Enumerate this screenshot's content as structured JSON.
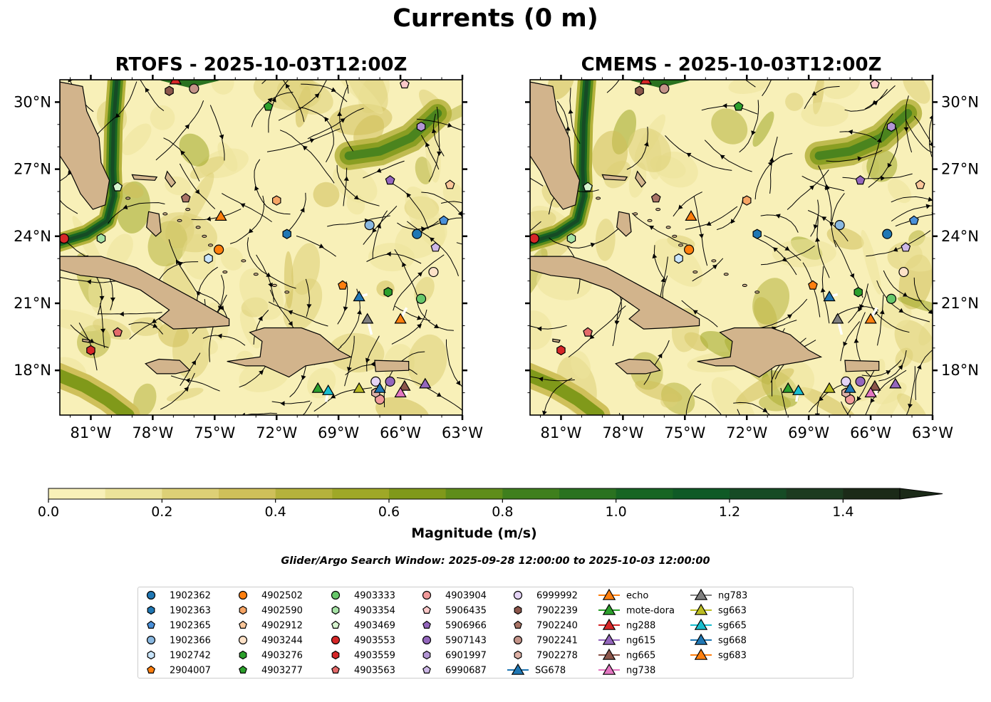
{
  "figure": {
    "title": "Currents (0 m)",
    "colorbar_label": "Magnitude (m/s)",
    "search_window": "Glider/Argo Search Window: 2025-09-28 12:00:00 to 2025-10-03 12:00:00"
  },
  "colors": {
    "land": "#d2b48c",
    "colormap": [
      "#f8f0b8",
      "#ece39a",
      "#ddd076",
      "#cfc05a",
      "#b5b23c",
      "#9fa827",
      "#80991a",
      "#5f8d1a",
      "#3f7f1d",
      "#2a7220",
      "#176523",
      "#0f5a26",
      "#164b25",
      "#1c3b20",
      "#1b2a18"
    ]
  },
  "chart_data": [
    {
      "type": "map",
      "title": "RTOFS - 2025-10-03T12:00Z",
      "lon_range": [
        -82.5,
        -63
      ],
      "lat_range": [
        16,
        31
      ],
      "x_ticks": [
        "81°W",
        "78°W",
        "75°W",
        "72°W",
        "69°W",
        "66°W",
        "63°W"
      ],
      "x_tick_values": [
        -81,
        -78,
        -75,
        -72,
        -69,
        -66,
        -63
      ],
      "y_ticks": [
        "30°N",
        "27°N",
        "24°N",
        "21°N",
        "18°N"
      ],
      "y_tick_values": [
        30,
        27,
        24,
        21,
        18
      ],
      "y_axis_side": "left"
    },
    {
      "type": "map",
      "title": "CMEMS - 2025-10-03T12:00Z",
      "lon_range": [
        -82.5,
        -63
      ],
      "lat_range": [
        16,
        31
      ],
      "x_ticks": [
        "81°W",
        "78°W",
        "75°W",
        "72°W",
        "69°W",
        "66°W",
        "63°W"
      ],
      "x_tick_values": [
        -81,
        -78,
        -75,
        -72,
        -69,
        -66,
        -63
      ],
      "y_ticks": [
        "30°N",
        "27°N",
        "24°N",
        "21°N",
        "18°N"
      ],
      "y_tick_values": [
        30,
        27,
        24,
        21,
        18
      ],
      "y_axis_side": "right"
    }
  ],
  "colorbar": {
    "min": 0.0,
    "max": 1.5,
    "levels": 15,
    "extend": "max",
    "ticks": [
      "0.0",
      "0.2",
      "0.4",
      "0.6",
      "0.8",
      "1.0",
      "1.2",
      "1.4"
    ],
    "tick_values": [
      0,
      0.2,
      0.4,
      0.6,
      0.8,
      1.0,
      1.2,
      1.4
    ]
  },
  "platforms": [
    {
      "name": "1902362",
      "marker": "circle",
      "color": "#1f77b4",
      "lon": -65.2,
      "lat": 24.1
    },
    {
      "name": "1902363",
      "marker": "hexagon",
      "color": "#1f77b4",
      "lon": -71.5,
      "lat": 24.1
    },
    {
      "name": "1902365",
      "marker": "pentagon",
      "color": "#4a90d9",
      "lon": -63.9,
      "lat": 24.7
    },
    {
      "name": "1902366",
      "marker": "circle",
      "color": "#8ab8e0",
      "lon": -67.5,
      "lat": 24.5
    },
    {
      "name": "1902742",
      "marker": "hexagon",
      "color": "#c9e5fb",
      "lon": -75.3,
      "lat": 23.0
    },
    {
      "name": "2904007",
      "marker": "pentagon",
      "color": "#ff7f0e",
      "lon": -68.8,
      "lat": 21.8
    },
    {
      "name": "4902502",
      "marker": "circle",
      "color": "#ff7f0e",
      "lon": -74.8,
      "lat": 23.4
    },
    {
      "name": "4902590",
      "marker": "hexagon",
      "color": "#f7a565",
      "lon": -72.0,
      "lat": 25.6
    },
    {
      "name": "4902912",
      "marker": "pentagon",
      "color": "#fbc79a",
      "lon": -63.6,
      "lat": 26.3
    },
    {
      "name": "4903244",
      "marker": "circle",
      "color": "#fde2c8",
      "lon": -64.4,
      "lat": 22.4
    },
    {
      "name": "4903276",
      "marker": "hexagon",
      "color": "#2ca02c",
      "lon": -66.6,
      "lat": 21.5
    },
    {
      "name": "4903277",
      "marker": "pentagon",
      "color": "#2ca02c",
      "lon": -72.4,
      "lat": 29.8
    },
    {
      "name": "4903333",
      "marker": "circle",
      "color": "#67c76a",
      "lon": -65.0,
      "lat": 21.2
    },
    {
      "name": "4903354",
      "marker": "hexagon",
      "color": "#a6e3a6",
      "lon": -80.5,
      "lat": 23.9
    },
    {
      "name": "4903469",
      "marker": "pentagon",
      "color": "#d7f5cf",
      "lon": -79.7,
      "lat": 26.2
    },
    {
      "name": "4903553",
      "marker": "circle",
      "color": "#d62728",
      "lon": -82.3,
      "lat": 23.9
    },
    {
      "name": "4903559",
      "marker": "hexagon",
      "color": "#d62728",
      "lon": -81.0,
      "lat": 18.9
    },
    {
      "name": "4903563",
      "marker": "pentagon",
      "color": "#e46a6a",
      "lon": -79.7,
      "lat": 19.7
    },
    {
      "name": "4903904",
      "marker": "circle",
      "color": "#f19a9a",
      "lon": -67.0,
      "lat": 16.7
    },
    {
      "name": "5906435",
      "marker": "pentagon",
      "color": "#fcc9c9",
      "lon": -65.8,
      "lat": 30.8
    },
    {
      "name": "5906966",
      "marker": "pentagon",
      "color": "#9467bd",
      "lon": -66.5,
      "lat": 26.5
    },
    {
      "name": "5907143",
      "marker": "circle",
      "color": "#9467bd",
      "lon": -66.5,
      "lat": 17.5
    },
    {
      "name": "6901997",
      "marker": "hexagon",
      "color": "#b296d4",
      "lon": -65.0,
      "lat": 28.9
    },
    {
      "name": "6990687",
      "marker": "pentagon",
      "color": "#cdb8e6",
      "lon": -64.3,
      "lat": 23.5
    },
    {
      "name": "6999992",
      "marker": "circle",
      "color": "#e5d4f6",
      "lon": -67.2,
      "lat": 17.5
    },
    {
      "name": "7902239",
      "marker": "hexagon",
      "color": "#8c564b",
      "lon": -77.2,
      "lat": 30.5
    },
    {
      "name": "7902240",
      "marker": "pentagon",
      "color": "#a97466",
      "lon": -76.4,
      "lat": 25.7
    },
    {
      "name": "7902241",
      "marker": "circle",
      "color": "#c49489",
      "lon": -76.0,
      "lat": 30.6
    },
    {
      "name": "7902278",
      "marker": "hexagon",
      "color": "#deb1a6",
      "lon": -67.2,
      "lat": 17.0
    },
    {
      "name": "SG678",
      "marker": "triangle",
      "color": "#1f77b4",
      "line": "#1f77b4",
      "lon": -67.0,
      "lat": 17.2
    },
    {
      "name": "echo",
      "marker": "triangle",
      "color": "#ff7f0e",
      "line": "#ff7f0e",
      "lon": -74.7,
      "lat": 24.9
    },
    {
      "name": "mote-dora",
      "marker": "triangle",
      "color": "#2ca02c",
      "line": "#2ca02c",
      "lon": -70.0,
      "lat": 17.2
    },
    {
      "name": "ng288",
      "marker": "triangle",
      "color": "#d62728",
      "line": "#d62728",
      "lon": -76.9,
      "lat": 31.0
    },
    {
      "name": "ng615",
      "marker": "triangle",
      "color": "#9467bd",
      "line": "#9467bd",
      "lon": -64.8,
      "lat": 17.4
    },
    {
      "name": "ng665",
      "marker": "triangle",
      "color": "#8c564b",
      "line": "#8c564b",
      "lon": -65.8,
      "lat": 17.3
    },
    {
      "name": "ng738",
      "marker": "triangle",
      "color": "#e377c2",
      "line": "#e377c2",
      "lon": -66.0,
      "lat": 17.0
    },
    {
      "name": "ng783",
      "marker": "triangle",
      "color": "#7f7f7f",
      "line": "#7f7f7f",
      "lon": -67.6,
      "lat": 20.3
    },
    {
      "name": "sg663",
      "marker": "triangle",
      "color": "#bcbd22",
      "line": "#bcbd22",
      "lon": -68.0,
      "lat": 17.2
    },
    {
      "name": "sg665",
      "marker": "triangle",
      "color": "#17becf",
      "line": "#17becf",
      "lon": -69.5,
      "lat": 17.1
    },
    {
      "name": "sg668",
      "marker": "triangle",
      "color": "#1f77b4",
      "line": "#1f77b4",
      "lon": -68.0,
      "lat": 21.3
    },
    {
      "name": "sg683",
      "marker": "triangle",
      "color": "#ff7f0e",
      "line": "#ff7f0e",
      "lon": -66.0,
      "lat": 20.3
    }
  ]
}
